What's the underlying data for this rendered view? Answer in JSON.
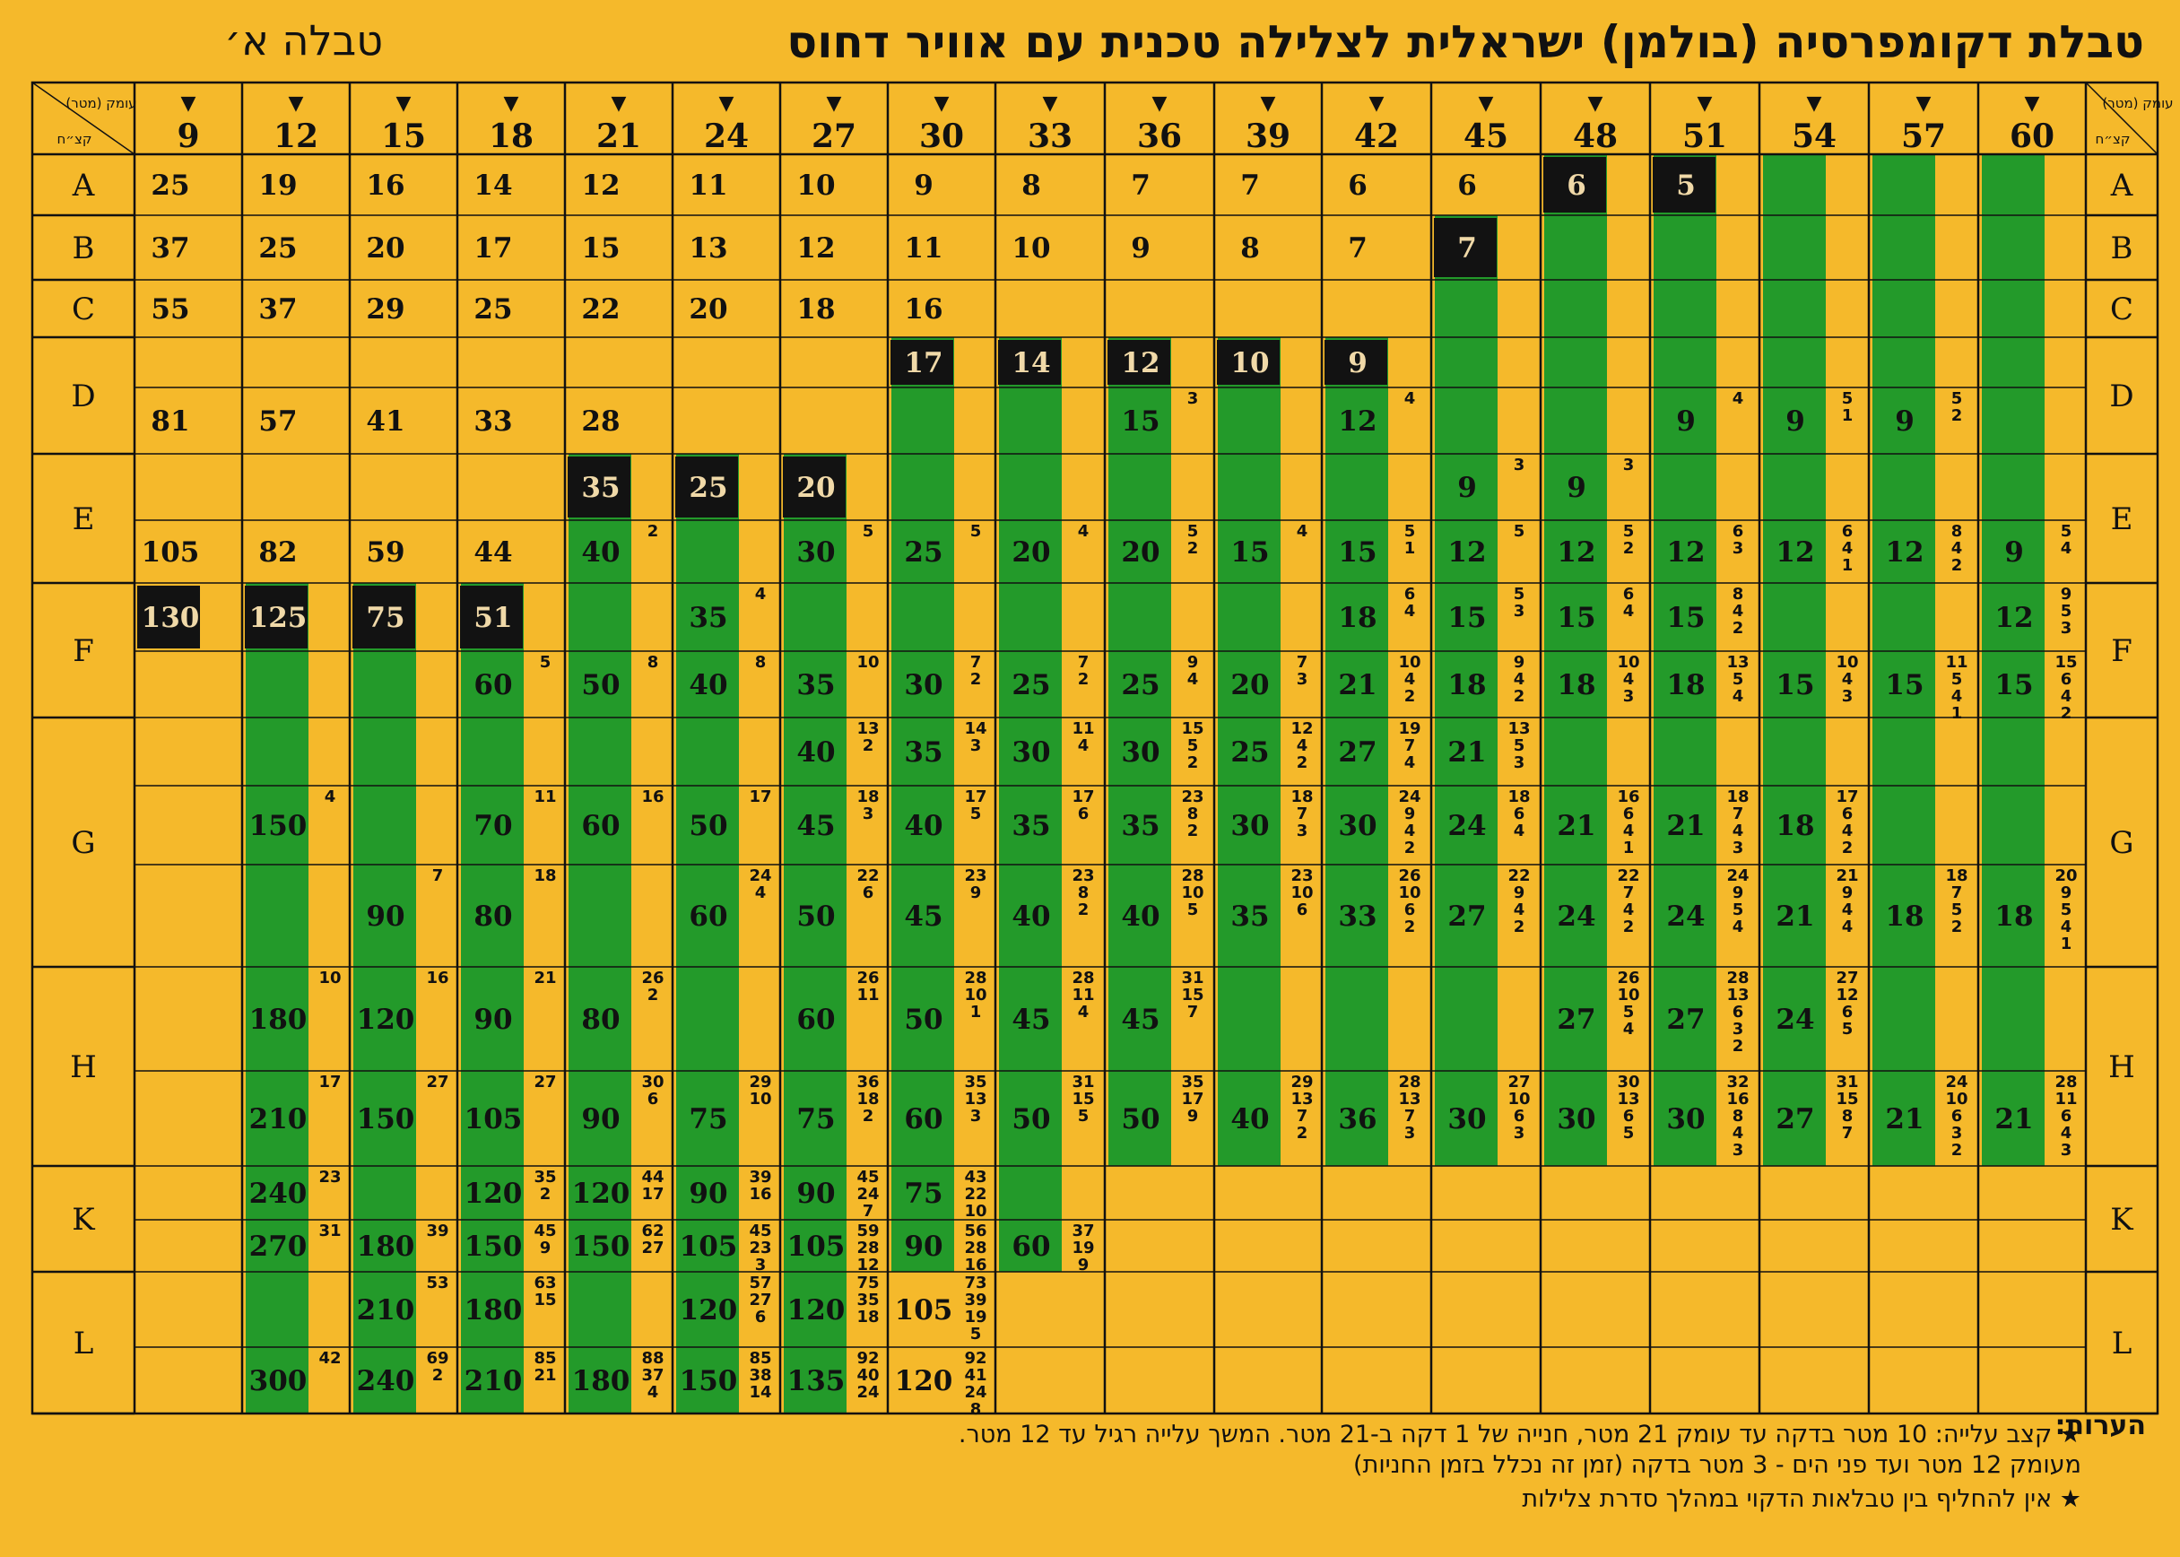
{
  "title": "טבלת דקומפרסיה (בולמן) ישראלית לצלילה טכנית עם אוויר דחוס",
  "subtitle": "טבלה א׳",
  "corner_right": {
    "depth": "עומק (מטר)",
    "group": "קצ״ח"
  },
  "corner_left": {
    "depth": "עומק (מטר)",
    "group": "קצ״ח"
  },
  "depths": [
    "9",
    "12",
    "15",
    "18",
    "21",
    "24",
    "27",
    "30",
    "33",
    "36",
    "39",
    "42",
    "45",
    "48",
    "51",
    "54",
    "57",
    "60"
  ],
  "groups": [
    "A",
    "B",
    "C",
    "D",
    "E",
    "F",
    "G",
    "H",
    "K",
    "L"
  ],
  "colors": {
    "background": "#f5b92b",
    "green": "#239a2a",
    "black_cell": "#121212",
    "line": "#111111"
  },
  "cells": [
    {
      "row": 0,
      "col": 0,
      "v": "25"
    },
    {
      "row": 0,
      "col": 1,
      "v": "19"
    },
    {
      "row": 0,
      "col": 2,
      "v": "16"
    },
    {
      "row": 0,
      "col": 3,
      "v": "14"
    },
    {
      "row": 0,
      "col": 4,
      "v": "12"
    },
    {
      "row": 0,
      "col": 5,
      "v": "11"
    },
    {
      "row": 0,
      "col": 6,
      "v": "10"
    },
    {
      "row": 0,
      "col": 7,
      "v": "9"
    },
    {
      "row": 0,
      "col": 8,
      "v": "8"
    },
    {
      "row": 0,
      "col": 9,
      "v": "7"
    },
    {
      "row": 0,
      "col": 10,
      "v": "7"
    },
    {
      "row": 0,
      "col": 11,
      "v": "6"
    },
    {
      "row": 0,
      "col": 12,
      "v": "6"
    },
    {
      "row": 0,
      "col": 13,
      "v": "6",
      "black": true
    },
    {
      "row": 0,
      "col": 14,
      "v": "5",
      "black": true
    },
    {
      "row": 1,
      "col": 0,
      "v": "37"
    },
    {
      "row": 1,
      "col": 1,
      "v": "25"
    },
    {
      "row": 1,
      "col": 2,
      "v": "20"
    },
    {
      "row": 1,
      "col": 3,
      "v": "17"
    },
    {
      "row": 1,
      "col": 4,
      "v": "15"
    },
    {
      "row": 1,
      "col": 5,
      "v": "13"
    },
    {
      "row": 1,
      "col": 6,
      "v": "12"
    },
    {
      "row": 1,
      "col": 7,
      "v": "11"
    },
    {
      "row": 1,
      "col": 8,
      "v": "10"
    },
    {
      "row": 1,
      "col": 9,
      "v": "9"
    },
    {
      "row": 1,
      "col": 10,
      "v": "8"
    },
    {
      "row": 1,
      "col": 11,
      "v": "7"
    },
    {
      "row": 1,
      "col": 12,
      "v": "7",
      "black": true
    },
    {
      "row": 2,
      "col": 0,
      "v": "55"
    },
    {
      "row": 2,
      "col": 1,
      "v": "37"
    },
    {
      "row": 2,
      "col": 2,
      "v": "29"
    },
    {
      "row": 2,
      "col": 3,
      "v": "25"
    },
    {
      "row": 2,
      "col": 4,
      "v": "22"
    },
    {
      "row": 2,
      "col": 5,
      "v": "20"
    },
    {
      "row": 2,
      "col": 6,
      "v": "18"
    },
    {
      "row": 2,
      "col": 7,
      "v": "16"
    },
    {
      "row": 3,
      "col": 7,
      "v": "17",
      "black": true
    },
    {
      "row": 3,
      "col": 8,
      "v": "14",
      "black": true
    },
    {
      "row": 3,
      "col": 9,
      "v": "12",
      "black": true
    },
    {
      "row": 3,
      "col": 10,
      "v": "10",
      "black": true
    },
    {
      "row": 3,
      "col": 11,
      "v": "9",
      "black": true
    },
    {
      "row": 4,
      "col": 0,
      "v": "81"
    },
    {
      "row": 4,
      "col": 1,
      "v": "57"
    },
    {
      "row": 4,
      "col": 2,
      "v": "41"
    },
    {
      "row": 4,
      "col": 3,
      "v": "33"
    },
    {
      "row": 4,
      "col": 4,
      "v": "28"
    },
    {
      "row": 4,
      "col": 9,
      "v": "15",
      "s": "3"
    },
    {
      "row": 4,
      "col": 11,
      "v": "12",
      "s": "4"
    },
    {
      "row": 4,
      "col": 14,
      "v": "9",
      "s": "4"
    },
    {
      "row": 4,
      "col": 15,
      "v": "9",
      "s": "5\n1"
    },
    {
      "row": 4,
      "col": 16,
      "v": "9",
      "s": "5\n2"
    },
    {
      "row": 5,
      "col": 4,
      "v": "35",
      "black": true
    },
    {
      "row": 5,
      "col": 5,
      "v": "25",
      "black": true
    },
    {
      "row": 5,
      "col": 6,
      "v": "20",
      "black": true
    },
    {
      "row": 5,
      "col": 12,
      "v": "9",
      "s": "3"
    },
    {
      "row": 5,
      "col": 13,
      "v": "9",
      "s": "3"
    },
    {
      "row": 6,
      "col": 0,
      "v": "105"
    },
    {
      "row": 6,
      "col": 1,
      "v": "82"
    },
    {
      "row": 6,
      "col": 2,
      "v": "59"
    },
    {
      "row": 6,
      "col": 3,
      "v": "44"
    },
    {
      "row": 6,
      "col": 4,
      "v": "40",
      "s": "2"
    },
    {
      "row": 6,
      "col": 6,
      "v": "30",
      "s": "5"
    },
    {
      "row": 6,
      "col": 7,
      "v": "25",
      "s": "5"
    },
    {
      "row": 6,
      "col": 8,
      "v": "20",
      "s": "4"
    },
    {
      "row": 6,
      "col": 9,
      "v": "20",
      "s": "5\n2"
    },
    {
      "row": 6,
      "col": 10,
      "v": "15",
      "s": "4"
    },
    {
      "row": 6,
      "col": 11,
      "v": "15",
      "s": "5\n1"
    },
    {
      "row": 6,
      "col": 12,
      "v": "12",
      "s": "5"
    },
    {
      "row": 6,
      "col": 13,
      "v": "12",
      "s": "5\n2"
    },
    {
      "row": 6,
      "col": 14,
      "v": "12",
      "s": "6\n3"
    },
    {
      "row": 6,
      "col": 15,
      "v": "12",
      "s": "6\n4\n1"
    },
    {
      "row": 6,
      "col": 16,
      "v": "12",
      "s": "8\n4\n2"
    },
    {
      "row": 6,
      "col": 17,
      "v": "9",
      "s": "5\n4"
    },
    {
      "row": 7,
      "col": 0,
      "v": "130",
      "black": true
    },
    {
      "row": 7,
      "col": 1,
      "v": "125",
      "black": true
    },
    {
      "row": 7,
      "col": 2,
      "v": "75",
      "black": true
    },
    {
      "row": 7,
      "col": 3,
      "v": "51",
      "black": true
    },
    {
      "row": 7,
      "col": 5,
      "v": "35",
      "s": "4"
    },
    {
      "row": 7,
      "col": 11,
      "v": "18",
      "s": "6\n4"
    },
    {
      "row": 7,
      "col": 12,
      "v": "15",
      "s": "5\n3"
    },
    {
      "row": 7,
      "col": 13,
      "v": "15",
      "s": "6\n4"
    },
    {
      "row": 7,
      "col": 14,
      "v": "15",
      "s": "8\n4\n2"
    },
    {
      "row": 7,
      "col": 17,
      "v": "12",
      "s": "9\n5\n3"
    },
    {
      "row": 8,
      "col": 3,
      "v": "60",
      "s": "5"
    },
    {
      "row": 8,
      "col": 4,
      "v": "50",
      "s": "8"
    },
    {
      "row": 8,
      "col": 5,
      "v": "40",
      "s": "8"
    },
    {
      "row": 8,
      "col": 6,
      "v": "35",
      "s": "10"
    },
    {
      "row": 8,
      "col": 7,
      "v": "30",
      "s": "7\n2"
    },
    {
      "row": 8,
      "col": 8,
      "v": "25",
      "s": "7\n2"
    },
    {
      "row": 8,
      "col": 9,
      "v": "25",
      "s": "9\n4"
    },
    {
      "row": 8,
      "col": 10,
      "v": "20",
      "s": "7\n3"
    },
    {
      "row": 8,
      "col": 11,
      "v": "21",
      "s": "10\n4\n2"
    },
    {
      "row": 8,
      "col": 12,
      "v": "18",
      "s": "9\n4\n2"
    },
    {
      "row": 8,
      "col": 13,
      "v": "18",
      "s": "10\n4\n3"
    },
    {
      "row": 8,
      "col": 14,
      "v": "18",
      "s": "13\n5\n4"
    },
    {
      "row": 8,
      "col": 15,
      "v": "15",
      "s": "10\n4\n3"
    },
    {
      "row": 8,
      "col": 16,
      "v": "15",
      "s": "11\n5\n4\n1"
    },
    {
      "row": 8,
      "col": 17,
      "v": "15",
      "s": "15\n6\n4\n2"
    },
    {
      "row": 9,
      "col": 6,
      "v": "40",
      "s": "13\n2"
    },
    {
      "row": 9,
      "col": 7,
      "v": "35",
      "s": "14\n3"
    },
    {
      "row": 9,
      "col": 8,
      "v": "30",
      "s": "11\n4"
    },
    {
      "row": 9,
      "col": 9,
      "v": "30",
      "s": "15\n5\n2"
    },
    {
      "row": 9,
      "col": 10,
      "v": "25",
      "s": "12\n4\n2"
    },
    {
      "row": 9,
      "col": 11,
      "v": "27",
      "s": "19\n7\n4"
    },
    {
      "row": 9,
      "col": 12,
      "v": "21",
      "s": "13\n5\n3"
    },
    {
      "row": 10,
      "col": 1,
      "v": "150",
      "s": "4"
    },
    {
      "row": 10,
      "col": 3,
      "v": "70",
      "s": "11"
    },
    {
      "row": 10,
      "col": 4,
      "v": "60",
      "s": "16"
    },
    {
      "row": 10,
      "col": 5,
      "v": "50",
      "s": "17"
    },
    {
      "row": 10,
      "col": 6,
      "v": "45",
      "s": "18\n3"
    },
    {
      "row": 10,
      "col": 7,
      "v": "40",
      "s": "17\n5"
    },
    {
      "row": 10,
      "col": 8,
      "v": "35",
      "s": "17\n6"
    },
    {
      "row": 10,
      "col": 9,
      "v": "35",
      "s": "23\n8\n2"
    },
    {
      "row": 10,
      "col": 10,
      "v": "30",
      "s": "18\n7\n3"
    },
    {
      "row": 10,
      "col": 11,
      "v": "30",
      "s": "24\n9\n4\n2"
    },
    {
      "row": 10,
      "col": 12,
      "v": "24",
      "s": "18\n6\n4"
    },
    {
      "row": 10,
      "col": 13,
      "v": "21",
      "s": "16\n6\n4\n1"
    },
    {
      "row": 10,
      "col": 14,
      "v": "21",
      "s": "18\n7\n4\n3"
    },
    {
      "row": 10,
      "col": 15,
      "v": "18",
      "s": "17\n6\n4\n2"
    },
    {
      "row": 11,
      "col": 2,
      "v": "90",
      "s": "7"
    },
    {
      "row": 11,
      "col": 3,
      "v": "80",
      "s": "18"
    },
    {
      "row": 11,
      "col": 5,
      "v": "60",
      "s": "24\n4"
    },
    {
      "row": 11,
      "col": 6,
      "v": "50",
      "s": "22\n6"
    },
    {
      "row": 11,
      "col": 7,
      "v": "45",
      "s": "23\n9"
    },
    {
      "row": 11,
      "col": 8,
      "v": "40",
      "s": "23\n8\n2"
    },
    {
      "row": 11,
      "col": 9,
      "v": "40",
      "s": "28\n10\n5"
    },
    {
      "row": 11,
      "col": 10,
      "v": "35",
      "s": "23\n10\n6"
    },
    {
      "row": 11,
      "col": 11,
      "v": "33",
      "s": "26\n10\n6\n2"
    },
    {
      "row": 11,
      "col": 12,
      "v": "27",
      "s": "22\n9\n4\n2"
    },
    {
      "row": 11,
      "col": 13,
      "v": "24",
      "s": "22\n7\n4\n2"
    },
    {
      "row": 11,
      "col": 14,
      "v": "24",
      "s": "24\n9\n5\n4"
    },
    {
      "row": 11,
      "col": 15,
      "v": "21",
      "s": "21\n9\n4\n4"
    },
    {
      "row": 11,
      "col": 16,
      "v": "18",
      "s": "18\n7\n5\n2"
    },
    {
      "row": 11,
      "col": 17,
      "v": "18",
      "s": "20\n9\n5\n4\n1"
    },
    {
      "row": 12,
      "col": 1,
      "v": "180",
      "s": "10"
    },
    {
      "row": 12,
      "col": 2,
      "v": "120",
      "s": "16"
    },
    {
      "row": 12,
      "col": 3,
      "v": "90",
      "s": "21"
    },
    {
      "row": 12,
      "col": 4,
      "v": "80",
      "s": "26\n2"
    },
    {
      "row": 12,
      "col": 6,
      "v": "60",
      "s": "26\n11"
    },
    {
      "row": 12,
      "col": 7,
      "v": "50",
      "s": "28\n10\n1"
    },
    {
      "row": 12,
      "col": 8,
      "v": "45",
      "s": "28\n11\n4"
    },
    {
      "row": 12,
      "col": 9,
      "v": "45",
      "s": "31\n15\n7"
    },
    {
      "row": 12,
      "col": 13,
      "v": "27",
      "s": "26\n10\n5\n4"
    },
    {
      "row": 12,
      "col": 14,
      "v": "27",
      "s": "28\n13\n6\n3\n2"
    },
    {
      "row": 12,
      "col": 15,
      "v": "24",
      "s": "27\n12\n6\n5"
    },
    {
      "row": 13,
      "col": 1,
      "v": "210",
      "s": "17"
    },
    {
      "row": 13,
      "col": 2,
      "v": "150",
      "s": "27"
    },
    {
      "row": 13,
      "col": 3,
      "v": "105",
      "s": "27"
    },
    {
      "row": 13,
      "col": 4,
      "v": "90",
      "s": "30\n6"
    },
    {
      "row": 13,
      "col": 5,
      "v": "75",
      "s": "29\n10"
    },
    {
      "row": 13,
      "col": 6,
      "v": "75",
      "s": "36\n18\n2"
    },
    {
      "row": 13,
      "col": 7,
      "v": "60",
      "s": "35\n13\n3"
    },
    {
      "row": 13,
      "col": 8,
      "v": "50",
      "s": "31\n15\n5"
    },
    {
      "row": 13,
      "col": 9,
      "v": "50",
      "s": "35\n17\n9"
    },
    {
      "row": 13,
      "col": 10,
      "v": "40",
      "s": "29\n13\n7\n2"
    },
    {
      "row": 13,
      "col": 11,
      "v": "36",
      "s": "28\n13\n7\n3"
    },
    {
      "row": 13,
      "col": 12,
      "v": "30",
      "s": "27\n10\n6\n3"
    },
    {
      "row": 13,
      "col": 13,
      "v": "30",
      "s": "30\n13\n6\n5"
    },
    {
      "row": 13,
      "col": 14,
      "v": "30",
      "s": "32\n16\n8\n4\n3"
    },
    {
      "row": 13,
      "col": 15,
      "v": "27",
      "s": "31\n15\n8\n7"
    },
    {
      "row": 13,
      "col": 16,
      "v": "21",
      "s": "24\n10\n6\n3\n2"
    },
    {
      "row": 13,
      "col": 17,
      "v": "21",
      "s": "28\n11\n6\n4\n3"
    },
    {
      "row": 14,
      "col": 1,
      "v": "240",
      "s": "23"
    },
    {
      "row": 14,
      "col": 3,
      "v": "120",
      "s": "35\n2"
    },
    {
      "row": 14,
      "col": 4,
      "v": "120",
      "s": "44\n17"
    },
    {
      "row": 14,
      "col": 5,
      "v": "90",
      "s": "39\n16"
    },
    {
      "row": 14,
      "col": 6,
      "v": "90",
      "s": "45\n24\n7"
    },
    {
      "row": 14,
      "col": 7,
      "v": "75",
      "s": "43\n22\n10"
    },
    {
      "row": 15,
      "col": 1,
      "v": "270",
      "s": "31"
    },
    {
      "row": 15,
      "col": 2,
      "v": "180",
      "s": "39"
    },
    {
      "row": 15,
      "col": 3,
      "v": "150",
      "s": "45\n9"
    },
    {
      "row": 15,
      "col": 4,
      "v": "150",
      "s": "62\n27"
    },
    {
      "row": 15,
      "col": 5,
      "v": "105",
      "s": "45\n23\n3"
    },
    {
      "row": 15,
      "col": 6,
      "v": "105",
      "s": "59\n28\n12"
    },
    {
      "row": 15,
      "col": 7,
      "v": "90",
      "s": "56\n28\n16"
    },
    {
      "row": 15,
      "col": 8,
      "v": "60",
      "s": "37\n19\n9"
    },
    {
      "row": 16,
      "col": 2,
      "v": "210",
      "s": "53"
    },
    {
      "row": 16,
      "col": 3,
      "v": "180",
      "s": "63\n15"
    },
    {
      "row": 16,
      "col": 5,
      "v": "120",
      "s": "57\n27\n6"
    },
    {
      "row": 16,
      "col": 6,
      "v": "120",
      "s": "75\n35\n18"
    },
    {
      "row": 16,
      "col": 7,
      "v": "105",
      "s": "73\n39\n19\n5"
    },
    {
      "row": 17,
      "col": 1,
      "v": "300",
      "s": "42"
    },
    {
      "row": 17,
      "col": 2,
      "v": "240",
      "s": "69\n2"
    },
    {
      "row": 17,
      "col": 3,
      "v": "210",
      "s": "85\n21"
    },
    {
      "row": 17,
      "col": 4,
      "v": "180",
      "s": "88\n37\n4"
    },
    {
      "row": 17,
      "col": 5,
      "v": "150",
      "s": "85\n38\n14"
    },
    {
      "row": 17,
      "col": 6,
      "v": "135",
      "s": "92\n40\n24"
    },
    {
      "row": 17,
      "col": 7,
      "v": "120",
      "s": "92\n41\n24\n8"
    }
  ],
  "notes_label": "הערות:",
  "notes": [
    "★ קצב עלייה: 10 מטר בדקה עד עומק 21 מטר, חנייה של 1 דקה ב-21 מטר. המשך עלייה רגיל עד 12 מטר.",
    "מעומק 12 מטר ועד פני הים - 3 מטר בדקה (זמן זה נכלל בזמן החניות)",
    "★ אין להחליף בין טבלאות הדקוי במהלך סדרת צלילות"
  ]
}
